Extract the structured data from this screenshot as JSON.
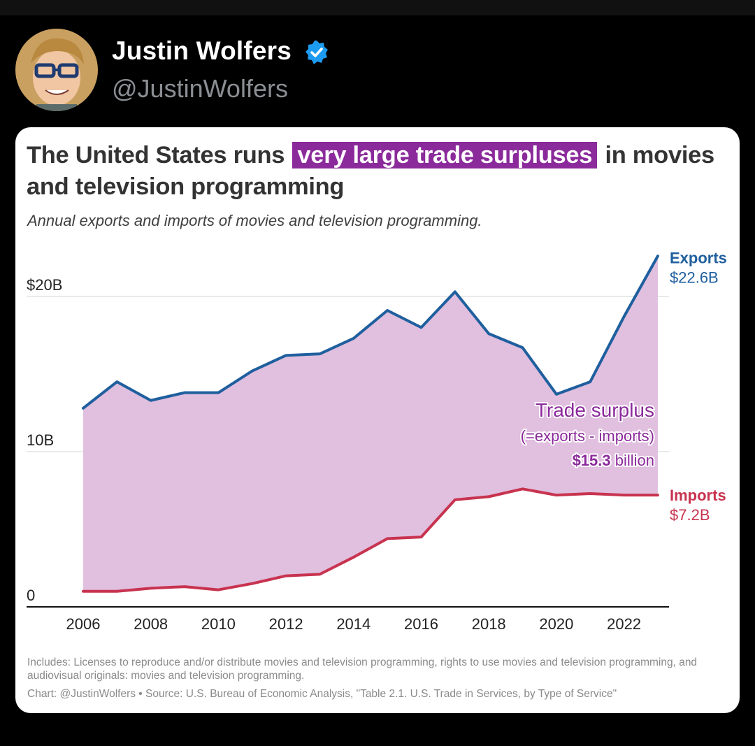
{
  "post": {
    "author_name": "Justin Wolfers",
    "author_handle": "@JustinWolfers",
    "verified_icon": "verified-badge-icon"
  },
  "colors": {
    "exports": "#1f5f9e",
    "imports": "#c8334f",
    "surplus_fill": "#e0bfdf",
    "surplus_text": "#8b2a9b",
    "highlight": "#8b2a9b"
  },
  "chart_data": {
    "type": "area",
    "title_part1": "The United States runs ",
    "title_highlight": "very large trade surpluses",
    "title_part2": " in movies and television programming",
    "subtitle": "Annual exports and imports of movies and television programming.",
    "x": [
      2006,
      2007,
      2008,
      2009,
      2010,
      2011,
      2012,
      2013,
      2014,
      2015,
      2016,
      2017,
      2018,
      2019,
      2020,
      2021,
      2022,
      2023
    ],
    "series": [
      {
        "name": "Exports",
        "end_label": "$22.6B",
        "values": [
          12.8,
          14.5,
          13.3,
          13.8,
          13.8,
          15.2,
          16.2,
          16.3,
          17.3,
          19.1,
          18.0,
          20.3,
          17.6,
          16.7,
          13.7,
          14.5,
          18.7,
          22.6
        ]
      },
      {
        "name": "Imports",
        "end_label": "$7.2B",
        "values": [
          1.0,
          1.0,
          1.2,
          1.3,
          1.1,
          1.5,
          2.0,
          2.1,
          3.2,
          4.4,
          4.5,
          6.9,
          7.1,
          7.6,
          7.2,
          7.3,
          7.2,
          7.2
        ]
      }
    ],
    "fill_between": "Trade surplus",
    "annotation": {
      "line1": "Trade surplus",
      "line2": "(=exports - imports)",
      "value": "$15.3",
      "unit": " billion"
    },
    "x_ticks": [
      "2006",
      "2008",
      "2010",
      "2012",
      "2014",
      "2016",
      "2018",
      "2020",
      "2022"
    ],
    "y_ticks": [
      {
        "value": 0,
        "label": "0"
      },
      {
        "value": 10,
        "label": "10B"
      },
      {
        "value": 20,
        "label": "$20B"
      }
    ],
    "ylim": [
      0,
      23
    ],
    "grid": true,
    "notes": "Includes: Licenses to reproduce and/or distribute movies and television programming, rights to use movies and television programming, and audiovisual originals: movies and television programming.",
    "source": "Chart: @JustinWolfers • Source: U.S. Bureau of Economic Analysis, \"Table 2.1. U.S. Trade in Services, by Type of Service\""
  }
}
